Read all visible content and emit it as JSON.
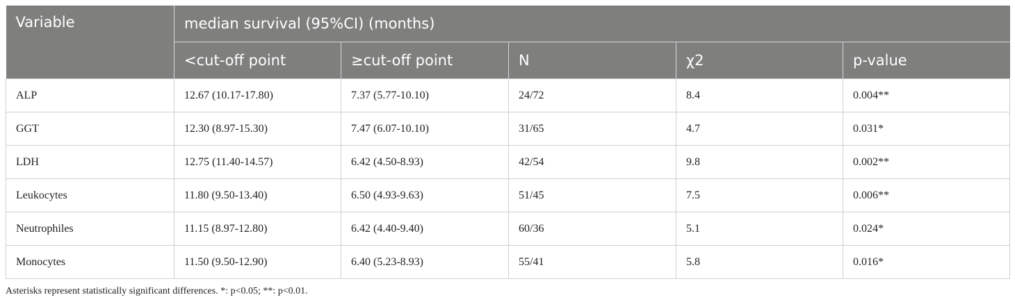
{
  "table": {
    "header_top": [
      "Variable",
      "median survival (95%CI) (months)"
    ],
    "header_sub": [
      "<cut-off point",
      "≥cut-off point",
      "N",
      "χ2",
      "p-value"
    ],
    "rows": [
      [
        "ALP",
        "12.67 (10.17-17.80)",
        "7.37 (5.77-10.10)",
        "24/72",
        "8.4",
        "0.004**"
      ],
      [
        "GGT",
        "12.30 (8.97-15.30)",
        "7.47 (6.07-10.10)",
        "31/65",
        "4.7",
        "0.031*"
      ],
      [
        "LDH",
        "12.75 (11.40-14.57)",
        "6.42 (4.50-8.93)",
        "42/54",
        "9.8",
        "0.002**"
      ],
      [
        "Leukocytes",
        "11.80 (9.50-13.40)",
        "6.50 (4.93-9.63)",
        "51/45",
        "7.5",
        "0.006**"
      ],
      [
        "Neutrophiles",
        "11.15 (8.97-12.80)",
        "6.42 (4.40-9.40)",
        "60/36",
        "5.1",
        "0.024*"
      ],
      [
        "Monocytes",
        "11.50 (9.50-12.90)",
        "6.40 (5.23-8.93)",
        "55/41",
        "5.8",
        "0.016*"
      ]
    ],
    "footnote": "Asterisks represent statistically significant differences. *: p<0.05; **: p<0.01."
  }
}
